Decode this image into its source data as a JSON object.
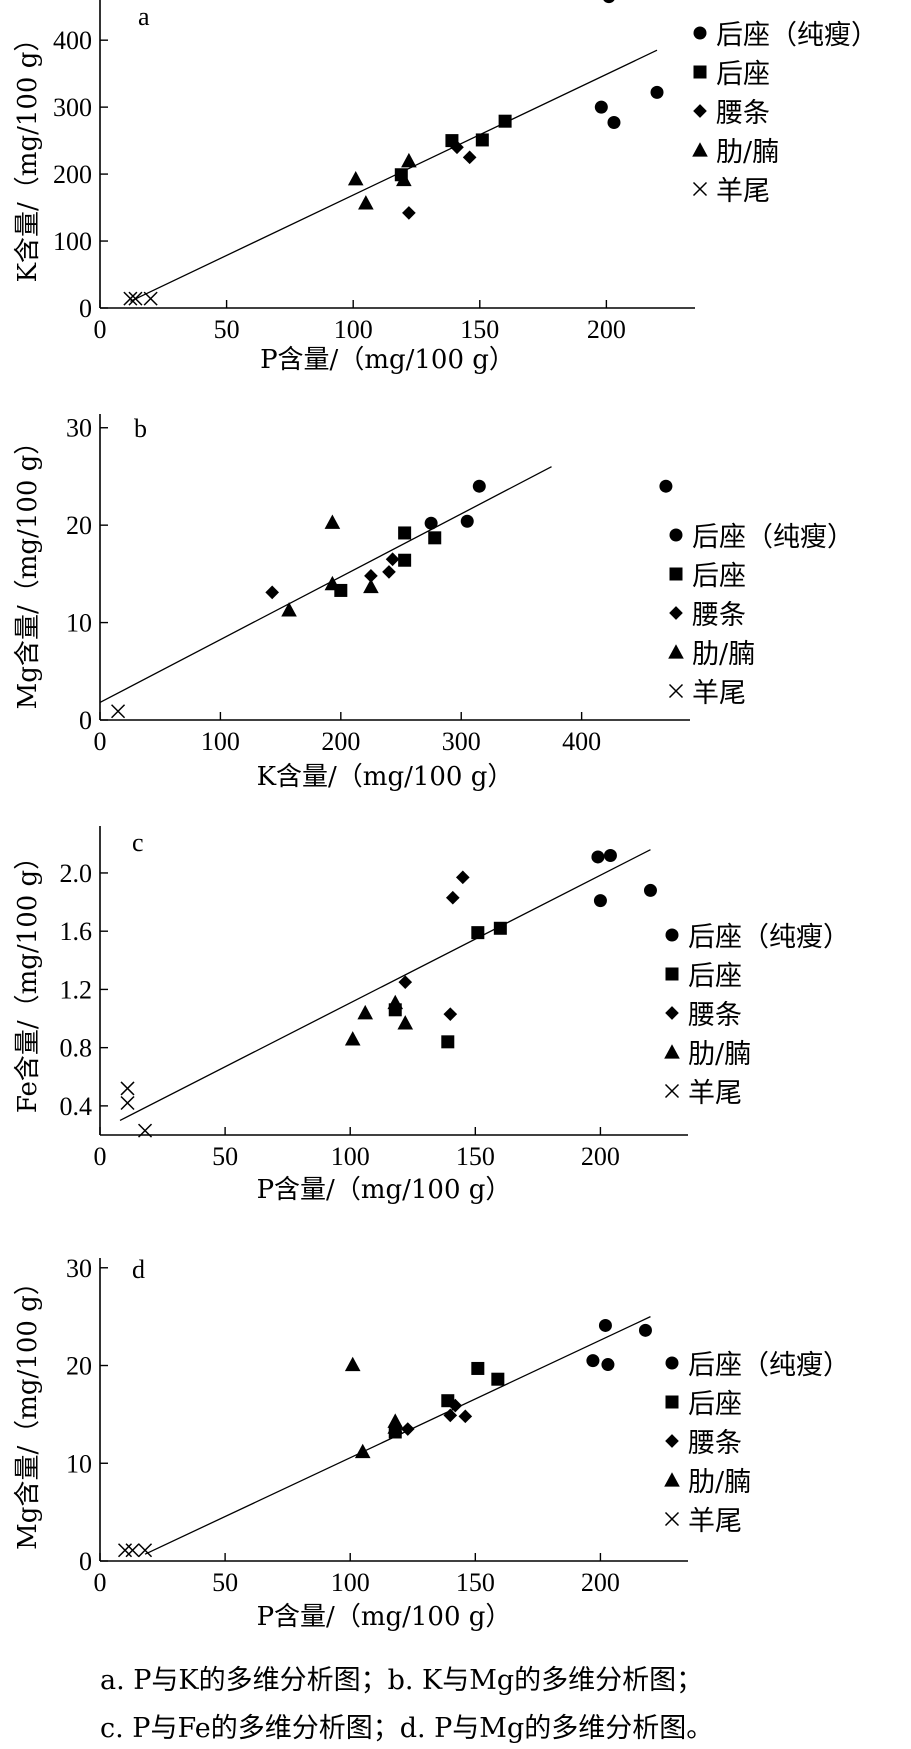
{
  "legend_labels": [
    "后座（纯瘦）",
    "后座",
    "腰条",
    "肋/腩",
    "羊尾"
  ],
  "legend_markers": [
    "circle",
    "square",
    "diamond",
    "triangle",
    "cross"
  ],
  "chart_data": [
    {
      "type": "scatter",
      "panel": "a",
      "xlabel": "P含量/（mg/100 g）",
      "ylabel": "K含量/（mg/100 g）",
      "xlim": [
        0,
        235
      ],
      "ylim": [
        0,
        460
      ],
      "xticks": [
        0,
        50,
        100,
        150,
        200
      ],
      "yticks": [
        0,
        100,
        200,
        300,
        400
      ],
      "legend_position": "top-right",
      "fit_line": [
        [
          12,
          10
        ],
        [
          220,
          385
        ]
      ],
      "series": [
        {
          "name": "后座（纯瘦）",
          "marker": "circle",
          "points": [
            [
              201,
              465
            ],
            [
              198,
              300
            ],
            [
              203,
              277
            ],
            [
              220,
              322
            ]
          ]
        },
        {
          "name": "后座",
          "marker": "square",
          "points": [
            [
              119,
              199
            ],
            [
              139,
              250
            ],
            [
              151,
              251
            ],
            [
              160,
              279
            ]
          ]
        },
        {
          "name": "腰条",
          "marker": "diamond",
          "points": [
            [
              122,
              142
            ],
            [
              141,
              240
            ],
            [
              146,
              225
            ]
          ]
        },
        {
          "name": "肋/腩",
          "marker": "triangle",
          "points": [
            [
              101,
              193
            ],
            [
              105,
              157
            ],
            [
              120,
              192
            ],
            [
              122,
              220
            ]
          ]
        },
        {
          "name": "羊尾",
          "marker": "cross",
          "points": [
            [
              12,
              14
            ],
            [
              14,
              14
            ],
            [
              20,
              14
            ]
          ]
        }
      ]
    },
    {
      "type": "scatter",
      "panel": "b",
      "xlabel": "K含量/（mg/100 g）",
      "ylabel": "Mg含量/（mg/100 g）",
      "xlim": [
        0,
        490
      ],
      "ylim": [
        0,
        31
      ],
      "xticks": [
        0,
        100,
        200,
        300,
        400
      ],
      "yticks": [
        0,
        10,
        20,
        30
      ],
      "legend_position": "right",
      "fit_line": [
        [
          0,
          1.8
        ],
        [
          375,
          26
        ]
      ],
      "series": [
        {
          "name": "后座（纯瘦）",
          "marker": "circle",
          "points": [
            [
              315,
              24
            ],
            [
              470,
              24
            ],
            [
              275,
              20.2
            ],
            [
              305,
              20.4
            ]
          ]
        },
        {
          "name": "后座",
          "marker": "square",
          "points": [
            [
              253,
              19.2
            ],
            [
              278,
              18.7
            ],
            [
              253,
              16.4
            ],
            [
              200,
              13.3
            ]
          ]
        },
        {
          "name": "腰条",
          "marker": "diamond",
          "points": [
            [
              143,
              13.1
            ],
            [
              225,
              14.8
            ],
            [
              240,
              15.2
            ],
            [
              243,
              16.5
            ]
          ]
        },
        {
          "name": "肋/腩",
          "marker": "triangle",
          "points": [
            [
              193,
              20.3
            ],
            [
              193,
              14.0
            ],
            [
              225,
              13.7
            ],
            [
              157,
              11.3
            ]
          ]
        },
        {
          "name": "羊尾",
          "marker": "cross",
          "points": [
            [
              15,
              0.9
            ]
          ]
        }
      ]
    },
    {
      "type": "scatter",
      "panel": "c",
      "xlabel": "P含量/（mg/100 g）",
      "ylabel": "Fe含量/（mg/100 g）",
      "xlim": [
        0,
        235
      ],
      "ylim": [
        0.2,
        2.35
      ],
      "xticks": [
        0,
        50,
        100,
        150,
        200
      ],
      "yticks": [
        0.4,
        0.8,
        1.2,
        1.6,
        2.0
      ],
      "ytick_labels": [
        "0.4",
        "0.8",
        "1.2",
        "1.6",
        "2.0"
      ],
      "legend_position": "right",
      "fit_line": [
        [
          8,
          0.3
        ],
        [
          220,
          2.16
        ]
      ],
      "series": [
        {
          "name": "后座（纯瘦）",
          "marker": "circle",
          "points": [
            [
              199,
              2.11
            ],
            [
              204,
              2.12
            ],
            [
              200,
              1.81
            ],
            [
              220,
              1.88
            ]
          ]
        },
        {
          "name": "后座",
          "marker": "square",
          "points": [
            [
              151,
              1.59
            ],
            [
              160,
              1.62
            ],
            [
              118,
              1.06
            ],
            [
              139,
              0.84
            ]
          ]
        },
        {
          "name": "腰条",
          "marker": "diamond",
          "points": [
            [
              145,
              1.97
            ],
            [
              141,
              1.83
            ],
            [
              122,
              1.25
            ],
            [
              140,
              1.03
            ]
          ]
        },
        {
          "name": "肋/腩",
          "marker": "triangle",
          "points": [
            [
              118,
              1.11
            ],
            [
              106,
              1.04
            ],
            [
              101,
              0.86
            ],
            [
              122,
              0.97
            ]
          ]
        },
        {
          "name": "羊尾",
          "marker": "cross",
          "points": [
            [
              11,
              0.52
            ],
            [
              11,
              0.42
            ],
            [
              18,
              0.23
            ]
          ]
        }
      ]
    },
    {
      "type": "scatter",
      "panel": "d",
      "xlabel": "P含量/（mg/100 g）",
      "ylabel": "Mg含量/（mg/100 g）",
      "xlim": [
        0,
        235
      ],
      "ylim": [
        0,
        31
      ],
      "xticks": [
        0,
        50,
        100,
        150,
        200
      ],
      "yticks": [
        0,
        10,
        20,
        30
      ],
      "legend_position": "right",
      "fit_line": [
        [
          18,
          0.7
        ],
        [
          220,
          25
        ]
      ],
      "series": [
        {
          "name": "后座（纯瘦）",
          "marker": "circle",
          "points": [
            [
              202,
              24.1
            ],
            [
              218,
              23.6
            ],
            [
              197,
              20.5
            ],
            [
              203,
              20.1
            ]
          ]
        },
        {
          "name": "后座",
          "marker": "square",
          "points": [
            [
              151,
              19.7
            ],
            [
              159,
              18.6
            ],
            [
              139,
              16.4
            ],
            [
              118,
              13.2
            ]
          ]
        },
        {
          "name": "腰条",
          "marker": "diamond",
          "points": [
            [
              142,
              15.9
            ],
            [
              140,
              14.9
            ],
            [
              146,
              14.8
            ],
            [
              123,
              13.5
            ]
          ]
        },
        {
          "name": "肋/腩",
          "marker": "triangle",
          "points": [
            [
              101,
              20.1
            ],
            [
              118,
              14.3
            ],
            [
              118,
              13.7
            ],
            [
              105,
              11.2
            ]
          ]
        },
        {
          "name": "羊尾",
          "marker": "cross",
          "points": [
            [
              10,
              1.1
            ],
            [
              13,
              1.1
            ],
            [
              18,
              1.1
            ]
          ]
        }
      ]
    }
  ],
  "caption": {
    "line1": "a. P与K的多维分析图；b. K与Mg的多维分析图；",
    "line2": "c. P与Fe的多维分析图；d. P与Mg的多维分析图。"
  }
}
